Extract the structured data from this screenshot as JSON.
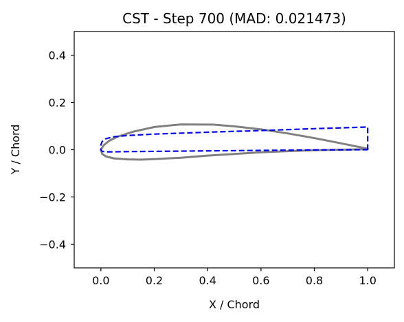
{
  "chart_data": {
    "type": "line",
    "title": "CST - Step 700 (MAD: 0.021473)",
    "xlabel": "X / Chord",
    "ylabel": "Y / Chord",
    "xlim": [
      -0.1,
      1.1
    ],
    "ylim": [
      -0.5,
      0.5
    ],
    "xticks": [
      0.0,
      0.2,
      0.4,
      0.6,
      0.8,
      1.0
    ],
    "xtick_labels": [
      "0.0",
      "0.2",
      "0.4",
      "0.6",
      "0.8",
      "1.0"
    ],
    "yticks": [
      0.4,
      0.2,
      0.0,
      -0.2,
      -0.4
    ],
    "ytick_labels": [
      "0.4",
      "0.2",
      "0.0",
      "−0.2",
      "−0.4"
    ],
    "grid": false,
    "series": [
      {
        "color": "#808080",
        "style": "solid",
        "x": [
          1.0,
          0.9,
          0.8,
          0.7,
          0.6,
          0.5,
          0.42,
          0.3,
          0.2,
          0.12,
          0.06,
          0.03,
          0.01,
          0.0,
          0.005,
          0.02,
          0.05,
          0.1,
          0.15,
          0.2,
          0.3,
          0.4,
          0.5,
          0.6,
          0.7,
          0.8,
          0.9,
          1.0
        ],
        "y": [
          0.004,
          0.027,
          0.049,
          0.069,
          0.086,
          0.099,
          0.106,
          0.107,
          0.096,
          0.076,
          0.054,
          0.037,
          0.018,
          0.0,
          -0.018,
          -0.029,
          -0.037,
          -0.041,
          -0.042,
          -0.04,
          -0.034,
          -0.025,
          -0.018,
          -0.011,
          -0.006,
          -0.002,
          0.0,
          0.002
        ]
      },
      {
        "color": "#0000ee",
        "style": "dashed",
        "x": [
          1.0,
          1.0,
          0.8,
          0.6,
          0.4,
          0.2,
          0.1,
          0.05,
          0.02,
          0.005,
          0.0,
          0.0,
          0.005,
          0.02,
          0.05,
          0.1,
          0.2,
          0.4,
          0.6,
          0.8,
          1.0
        ],
        "y": [
          0.0,
          0.096,
          0.089,
          0.081,
          0.074,
          0.066,
          0.06,
          0.055,
          0.047,
          0.035,
          0.02,
          0.0,
          -0.007,
          -0.009,
          -0.009,
          -0.008,
          -0.007,
          -0.005,
          -0.003,
          -0.001,
          0.0
        ]
      }
    ]
  }
}
